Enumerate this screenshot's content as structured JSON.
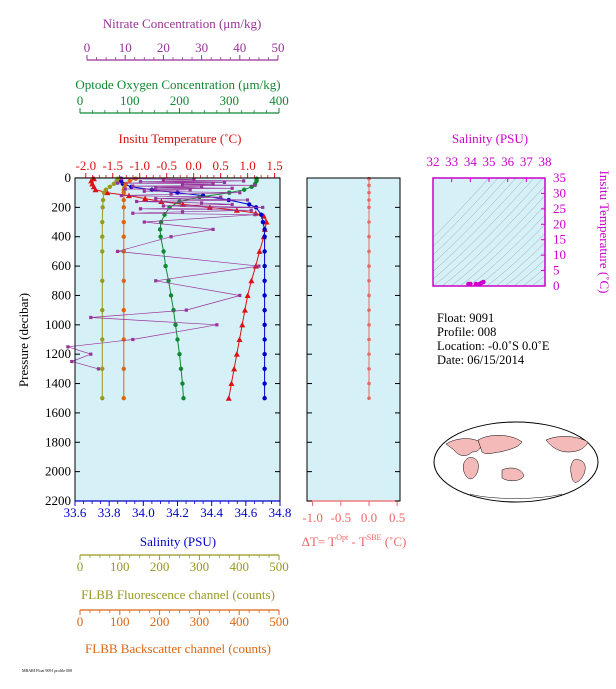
{
  "colors": {
    "nitrate": "#993399",
    "oxygen": "#118833",
    "temperature": "#dd1111",
    "salinity": "#0000cc",
    "fluorescence": "#999922",
    "backscatter": "#dd6611",
    "deltaT": "#ee6666",
    "ts_axis": "#cc00cc",
    "plot_bg": "#d6f0f8"
  },
  "info": {
    "float": "Float:  9091",
    "profile": "Profile:  008",
    "location": "Location:  -0.0˚S   0.0˚E",
    "date": "Date:  06/15/2014"
  },
  "footer_code": "MBARI Float 9091 profile 008",
  "chart_data": [
    {
      "type": "line",
      "id": "main_profile",
      "ylabel": "Pressure (decibar)",
      "ylim": [
        2200,
        0
      ],
      "yticks": [
        0,
        200,
        400,
        600,
        800,
        1000,
        1200,
        1400,
        1600,
        1800,
        2000,
        2200
      ],
      "axes": {
        "nitrate": {
          "label": "Nitrate Concentration (μm/kg)",
          "lim": [
            0,
            50
          ],
          "ticks": [
            0,
            10,
            20,
            30,
            40,
            50
          ]
        },
        "oxygen": {
          "label": "Optode Oxygen Concentration (μm/kg)",
          "lim": [
            0,
            400
          ],
          "ticks": [
            0,
            100,
            200,
            300,
            400
          ]
        },
        "temperature": {
          "label": "Insitu Temperature (˚C)",
          "lim": [
            -2.2,
            1.6
          ],
          "ticks": [
            "-2.0",
            "-1.5",
            "-1.0",
            "-0.5",
            "0.0",
            "0.5",
            "1.0",
            "1.5"
          ]
        },
        "salinity": {
          "label": "Salinity (PSU)",
          "lim": [
            33.6,
            34.8
          ],
          "ticks": [
            "33.6",
            "33.8",
            "34.0",
            "34.2",
            "34.4",
            "34.6",
            "34.8"
          ]
        },
        "fluorescence": {
          "label": "FLBB Fluorescence channel (counts)",
          "lim": [
            0,
            500
          ],
          "ticks": [
            0,
            100,
            200,
            300,
            400,
            500
          ]
        },
        "backscatter": {
          "label": "FLBB Backscatter channel (counts)",
          "lim": [
            0,
            500
          ],
          "ticks": [
            0,
            100,
            200,
            300,
            400,
            500
          ]
        }
      },
      "series": [
        {
          "key": "temperature",
          "name": "Insitu Temperature",
          "marker": "triangle",
          "points": [
            [
              5,
              -1.85
            ],
            [
              20,
              -1.9
            ],
            [
              40,
              -1.88
            ],
            [
              60,
              -1.85
            ],
            [
              80,
              -1.82
            ],
            [
              100,
              -1.6
            ],
            [
              120,
              -1.2
            ],
            [
              140,
              -0.9
            ],
            [
              160,
              -0.6
            ],
            [
              180,
              -0.2
            ],
            [
              200,
              0.3
            ],
            [
              220,
              0.8
            ],
            [
              240,
              1.15
            ],
            [
              260,
              1.3
            ],
            [
              300,
              1.35
            ],
            [
              350,
              1.32
            ],
            [
              400,
              1.3
            ],
            [
              500,
              1.22
            ],
            [
              600,
              1.15
            ],
            [
              700,
              1.07
            ],
            [
              800,
              1.0
            ],
            [
              900,
              0.95
            ],
            [
              1000,
              0.9
            ],
            [
              1100,
              0.85
            ],
            [
              1200,
              0.8
            ],
            [
              1300,
              0.75
            ],
            [
              1400,
              0.7
            ],
            [
              1500,
              0.65
            ]
          ]
        },
        {
          "key": "salinity",
          "name": "Salinity",
          "marker": "circle",
          "points": [
            [
              5,
              33.87
            ],
            [
              20,
              33.87
            ],
            [
              40,
              33.88
            ],
            [
              60,
              33.93
            ],
            [
              80,
              34.05
            ],
            [
              100,
              34.2
            ],
            [
              120,
              34.35
            ],
            [
              150,
              34.5
            ],
            [
              180,
              34.62
            ],
            [
              200,
              34.66
            ],
            [
              250,
              34.69
            ],
            [
              300,
              34.7
            ],
            [
              350,
              34.71
            ],
            [
              400,
              34.71
            ],
            [
              500,
              34.71
            ],
            [
              600,
              34.71
            ],
            [
              700,
              34.71
            ],
            [
              800,
              34.71
            ],
            [
              900,
              34.71
            ],
            [
              1000,
              34.71
            ],
            [
              1100,
              34.71
            ],
            [
              1200,
              34.71
            ],
            [
              1300,
              34.71
            ],
            [
              1400,
              34.71
            ],
            [
              1500,
              34.71
            ]
          ]
        },
        {
          "key": "oxygen",
          "name": "Optode Oxygen Concentration",
          "marker": "circle",
          "points": [
            [
              5,
              355
            ],
            [
              20,
              355
            ],
            [
              40,
              352
            ],
            [
              60,
              345
            ],
            [
              80,
              330
            ],
            [
              100,
              300
            ],
            [
              130,
              240
            ],
            [
              160,
              200
            ],
            [
              200,
              180
            ],
            [
              250,
              170
            ],
            [
              300,
              163
            ],
            [
              350,
              161
            ],
            [
              400,
              162
            ],
            [
              500,
              168
            ],
            [
              600,
              172
            ],
            [
              700,
              178
            ],
            [
              800,
              183
            ],
            [
              900,
              188
            ],
            [
              1000,
              192
            ],
            [
              1100,
              196
            ],
            [
              1200,
              200
            ],
            [
              1300,
              203
            ],
            [
              1400,
              206
            ],
            [
              1500,
              208
            ]
          ]
        },
        {
          "key": "fluorescence",
          "name": "FLBB Fluorescence channel",
          "marker": "circle",
          "points": [
            [
              5,
              95
            ],
            [
              20,
              92
            ],
            [
              40,
              85
            ],
            [
              60,
              75
            ],
            [
              80,
              65
            ],
            [
              100,
              60
            ],
            [
              150,
              58
            ],
            [
              200,
              57
            ],
            [
              300,
              56
            ],
            [
              400,
              56
            ],
            [
              500,
              56
            ],
            [
              700,
              56
            ],
            [
              900,
              56
            ],
            [
              1100,
              56
            ],
            [
              1300,
              56
            ],
            [
              1500,
              56
            ]
          ]
        },
        {
          "key": "backscatter",
          "name": "FLBB Backscatter channel",
          "marker": "circle",
          "points": [
            [
              5,
              140
            ],
            [
              20,
              125
            ],
            [
              40,
              115
            ],
            [
              60,
              112
            ],
            [
              80,
              110
            ],
            [
              100,
              110
            ],
            [
              150,
              110
            ],
            [
              200,
              110
            ],
            [
              300,
              110
            ],
            [
              400,
              110
            ],
            [
              500,
              110
            ],
            [
              700,
              110
            ],
            [
              900,
              110
            ],
            [
              1100,
              110
            ],
            [
              1300,
              110
            ],
            [
              1500,
              110
            ]
          ]
        },
        {
          "key": "nitrate",
          "name": "Nitrate Concentration",
          "marker": "square",
          "points": [
            [
              5,
              9
            ],
            [
              10,
              28
            ],
            [
              15,
              20
            ],
            [
              20,
              41
            ],
            [
              25,
              14
            ],
            [
              30,
              36
            ],
            [
              35,
              8
            ],
            [
              40,
              33
            ],
            [
              45,
              25
            ],
            [
              50,
              44
            ],
            [
              55,
              12
            ],
            [
              60,
              30
            ],
            [
              65,
              18
            ],
            [
              70,
              38
            ],
            [
              75,
              10
            ],
            [
              80,
              27
            ],
            [
              90,
              15
            ],
            [
              100,
              40
            ],
            [
              110,
              22
            ],
            [
              120,
              9
            ],
            [
              130,
              35
            ],
            [
              140,
              18
            ],
            [
              150,
              42
            ],
            [
              160,
              13
            ],
            [
              170,
              30
            ],
            [
              180,
              38
            ],
            [
              190,
              20
            ],
            [
              200,
              46
            ],
            [
              210,
              14
            ],
            [
              220,
              43
            ],
            [
              230,
              25
            ],
            [
              240,
              12
            ],
            [
              250,
              44
            ],
            [
              300,
              15
            ],
            [
              350,
              33
            ],
            [
              400,
              22
            ],
            [
              500,
              8
            ],
            [
              600,
              45
            ],
            [
              700,
              18
            ],
            [
              800,
              40
            ],
            [
              900,
              26
            ],
            [
              950,
              1
            ],
            [
              1000,
              34
            ],
            [
              1100,
              12
            ],
            [
              1150,
              -5
            ],
            [
              1200,
              1
            ],
            [
              1250,
              -4
            ],
            [
              1300,
              3
            ]
          ]
        }
      ]
    },
    {
      "type": "line",
      "id": "delta_t",
      "xlabel": "ΔT= T",
      "xlabel_sup1": "Opt",
      "xlabel_mid": " - T",
      "xlabel_sup2": "SBE",
      "xlabel_unit": " (˚C)",
      "xlim": [
        -1.1,
        0.55
      ],
      "xticks": [
        "-1.0",
        "-0.5",
        "0.0",
        "0.5"
      ],
      "ylim": [
        2200,
        0
      ],
      "points": [
        [
          5,
          0.0
        ],
        [
          50,
          0.0
        ],
        [
          100,
          0.0
        ],
        [
          150,
          0.0
        ],
        [
          200,
          0.0
        ],
        [
          300,
          0.0
        ],
        [
          400,
          0.0
        ],
        [
          500,
          0.0
        ],
        [
          600,
          0.0
        ],
        [
          700,
          0.0
        ],
        [
          800,
          0.0
        ],
        [
          900,
          0.0
        ],
        [
          1000,
          0.0
        ],
        [
          1100,
          0.0
        ],
        [
          1200,
          0.0
        ],
        [
          1300,
          0.0
        ],
        [
          1400,
          0.0
        ],
        [
          1500,
          0.0
        ]
      ]
    },
    {
      "type": "scatter",
      "id": "ts_diagram",
      "title": "Salinity (PSU)",
      "ylabel": "Insitu Temperature (˚C)",
      "xlim": [
        32,
        38
      ],
      "xticks": [
        "32",
        "33",
        "34",
        "35",
        "36",
        "37",
        "38"
      ],
      "ylim": [
        0,
        35
      ],
      "yticks": [
        "0",
        "5",
        "10",
        "15",
        "20",
        "25",
        "30",
        "35"
      ],
      "points": [
        [
          34.7,
          1.3
        ],
        [
          34.6,
          1.0
        ],
        [
          34.5,
          0.5
        ],
        [
          34.3,
          -0.5
        ],
        [
          34.0,
          -1.2
        ],
        [
          33.9,
          -1.8
        ]
      ]
    }
  ]
}
